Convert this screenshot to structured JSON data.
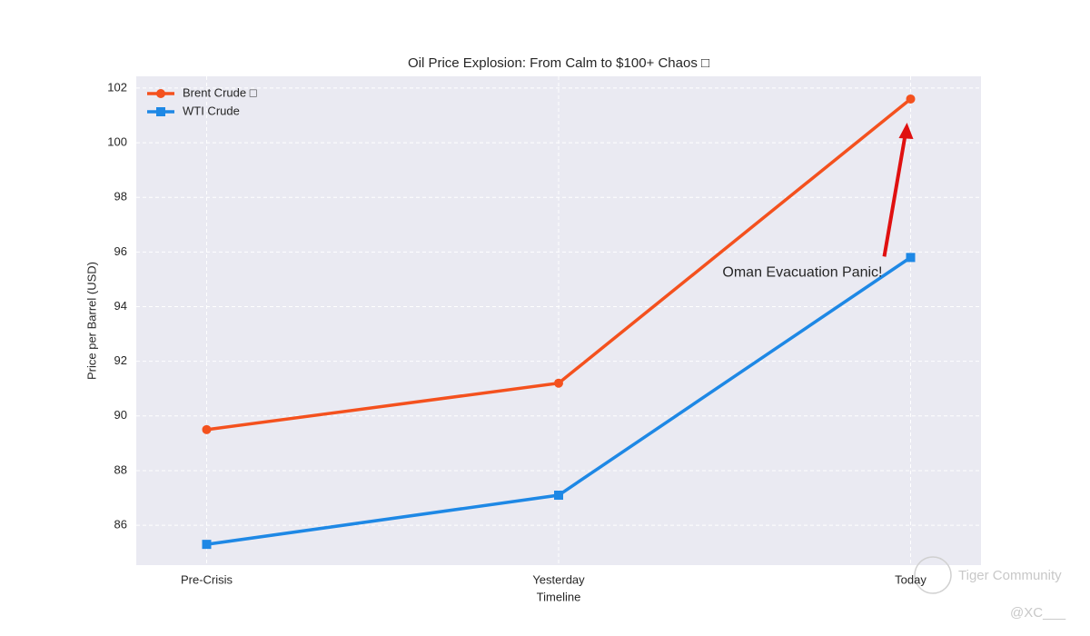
{
  "chart_data": {
    "type": "line",
    "title": "Oil Price Explosion: From Calm to $100+ Chaos □",
    "x_label": "Timeline",
    "y_label": "Price per Barrel (USD)",
    "categories": [
      "Pre-Crisis",
      "Yesterday",
      "Today"
    ],
    "series": [
      {
        "name": "Brent Crude □",
        "color": "#f4511e",
        "marker": "circle",
        "values": [
          89.5,
          91.2,
          101.6
        ]
      },
      {
        "name": "WTI Crude",
        "color": "#1e88e5",
        "marker": "square",
        "values": [
          85.3,
          87.1,
          95.8
        ]
      }
    ],
    "ylim": [
      84.54,
      102.43
    ],
    "yticks": [
      86,
      88,
      90,
      92,
      94,
      96,
      98,
      100,
      102
    ],
    "grid": true,
    "legend": "upper-left",
    "annotation": {
      "text": "Oman Evacuation Panic!",
      "color": "#e01010"
    },
    "watermark": [
      "Tiger Community",
      "@XC___"
    ]
  }
}
